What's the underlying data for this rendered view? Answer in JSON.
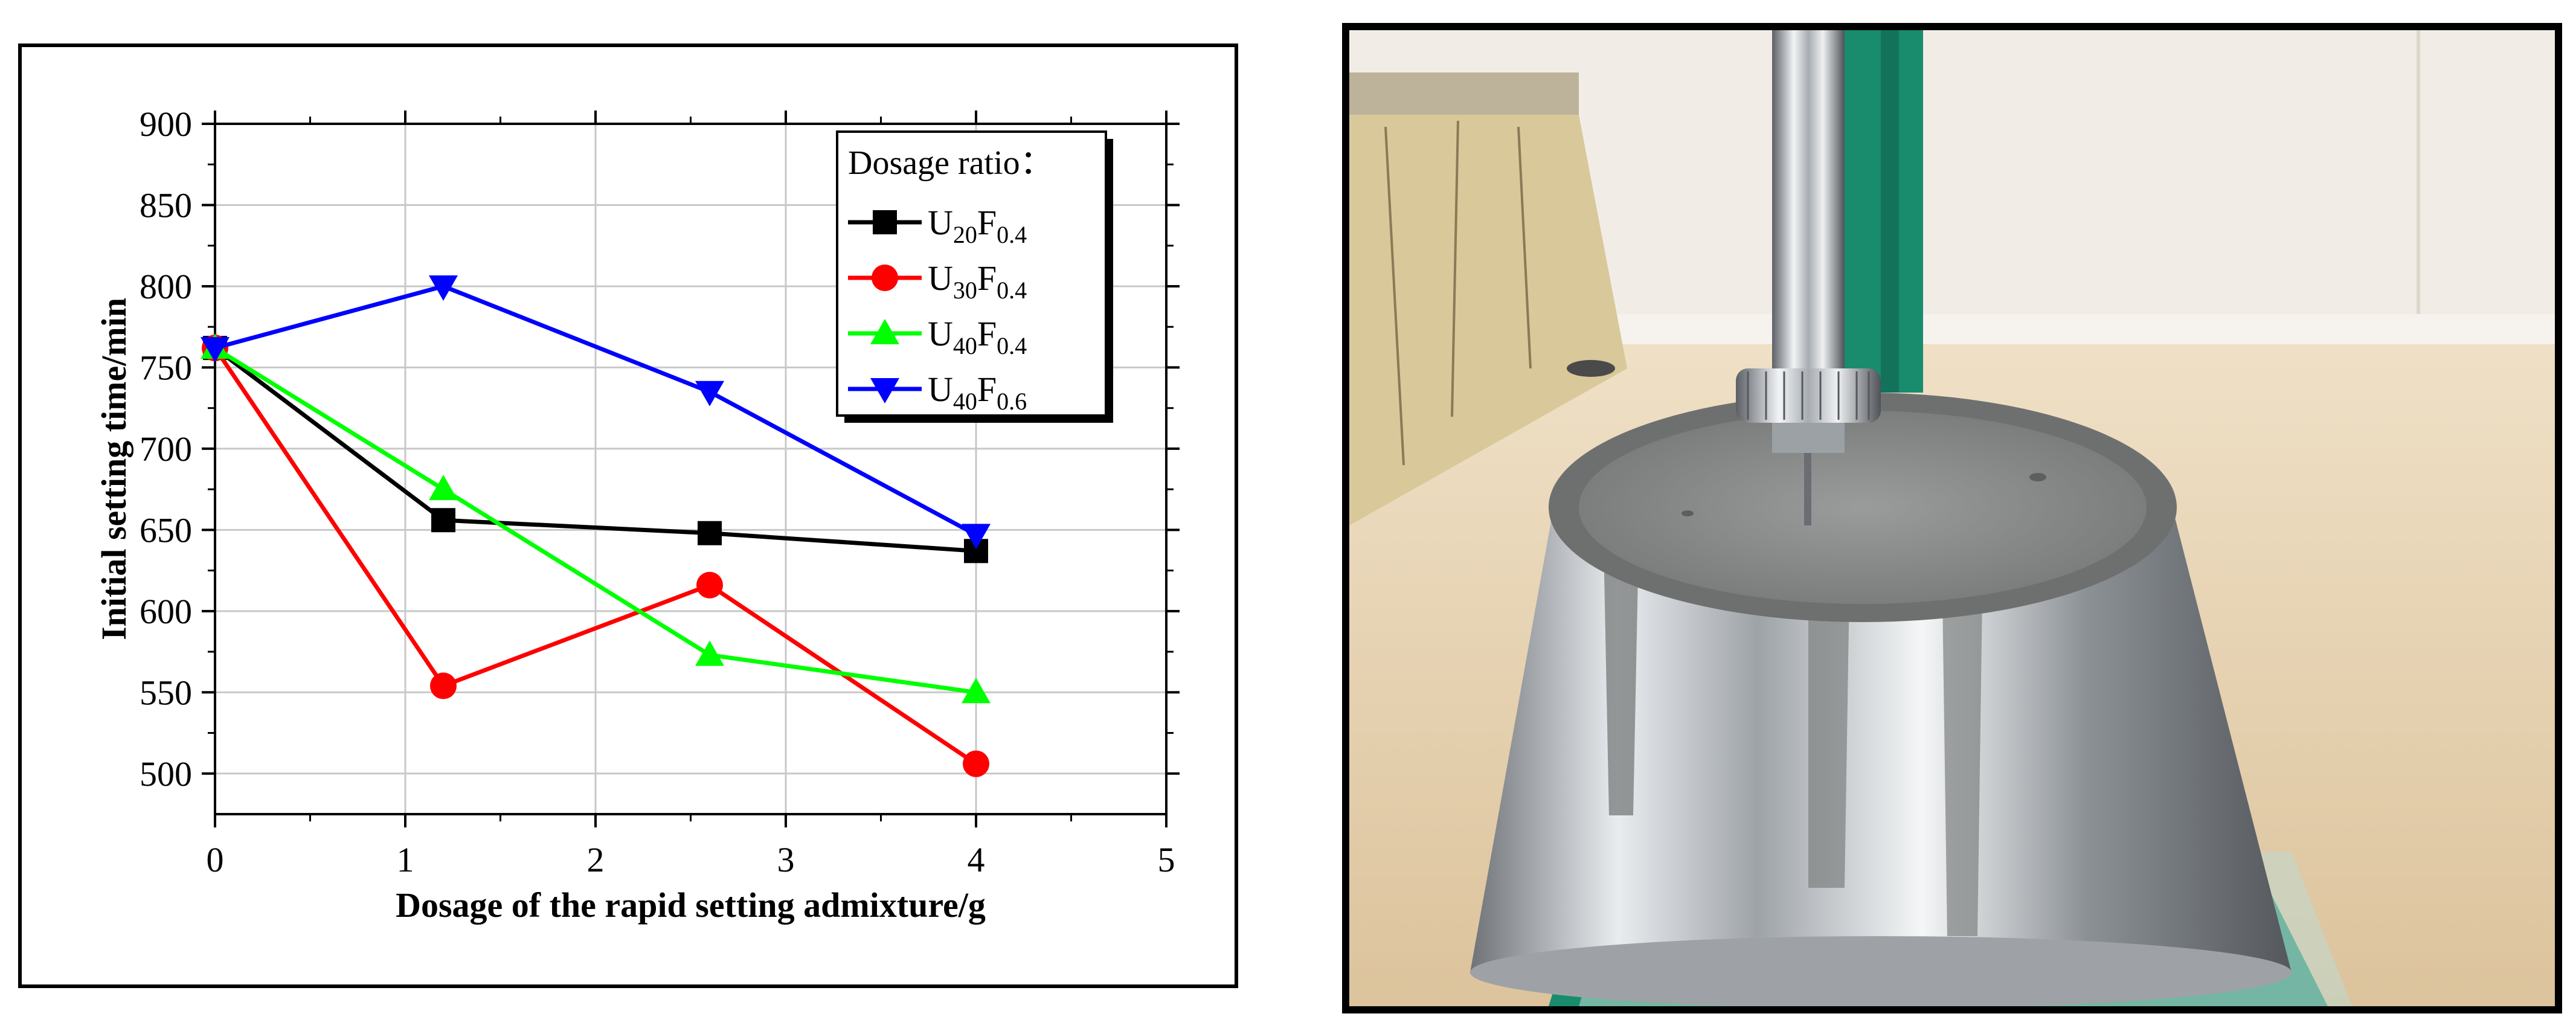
{
  "chart_data": {
    "type": "line",
    "xlabel": "Dosage of the rapid setting admixture/g",
    "ylabel": "Initial setting time/min",
    "xlim": [
      0,
      5
    ],
    "ylim": [
      475,
      900
    ],
    "xticks": [
      0,
      1,
      2,
      3,
      4,
      5
    ],
    "yticks": [
      500,
      550,
      600,
      650,
      700,
      750,
      800,
      850,
      900
    ],
    "grid": true,
    "legend_title": "Dosage ratio：",
    "legend_position": "top-right",
    "series": [
      {
        "name": "U20F0.4",
        "label_base1": "U",
        "label_sub1": "20",
        "label_base2": "F",
        "label_sub2": "0.4",
        "color": "#000000",
        "marker": "square",
        "x": [
          0,
          1.2,
          2.6,
          4
        ],
        "y": [
          762,
          656,
          648,
          637
        ]
      },
      {
        "name": "U30F0.4",
        "label_base1": "U",
        "label_sub1": "30",
        "label_base2": "F",
        "label_sub2": "0.4",
        "color": "#ff0000",
        "marker": "circle",
        "x": [
          0,
          1.2,
          2.6,
          4
        ],
        "y": [
          762,
          554,
          616,
          506
        ]
      },
      {
        "name": "U40F0.4",
        "label_base1": "U",
        "label_sub1": "40",
        "label_base2": "F",
        "label_sub2": "0.4",
        "color": "#00ff00",
        "marker": "triangle-up",
        "x": [
          0,
          1.2,
          2.6,
          4
        ],
        "y": [
          762,
          675,
          573,
          550
        ]
      },
      {
        "name": "U40F0.6",
        "label_base1": "U",
        "label_sub1": "40",
        "label_base2": "F",
        "label_sub2": "0.6",
        "color": "#0000ff",
        "marker": "triangle-down",
        "x": [
          0,
          1.2,
          2.6,
          4
        ],
        "y": [
          762,
          800,
          735,
          647
        ]
      }
    ]
  },
  "photo": {
    "subject": "setting-time needle apparatus on a cement paste mould",
    "colors": {
      "floor": "#e6d2b2",
      "wall": "#f1ede6",
      "green_frame": "#1a8c6e",
      "steel": "#c9ccd0",
      "paste": "#8d8f8f"
    }
  }
}
